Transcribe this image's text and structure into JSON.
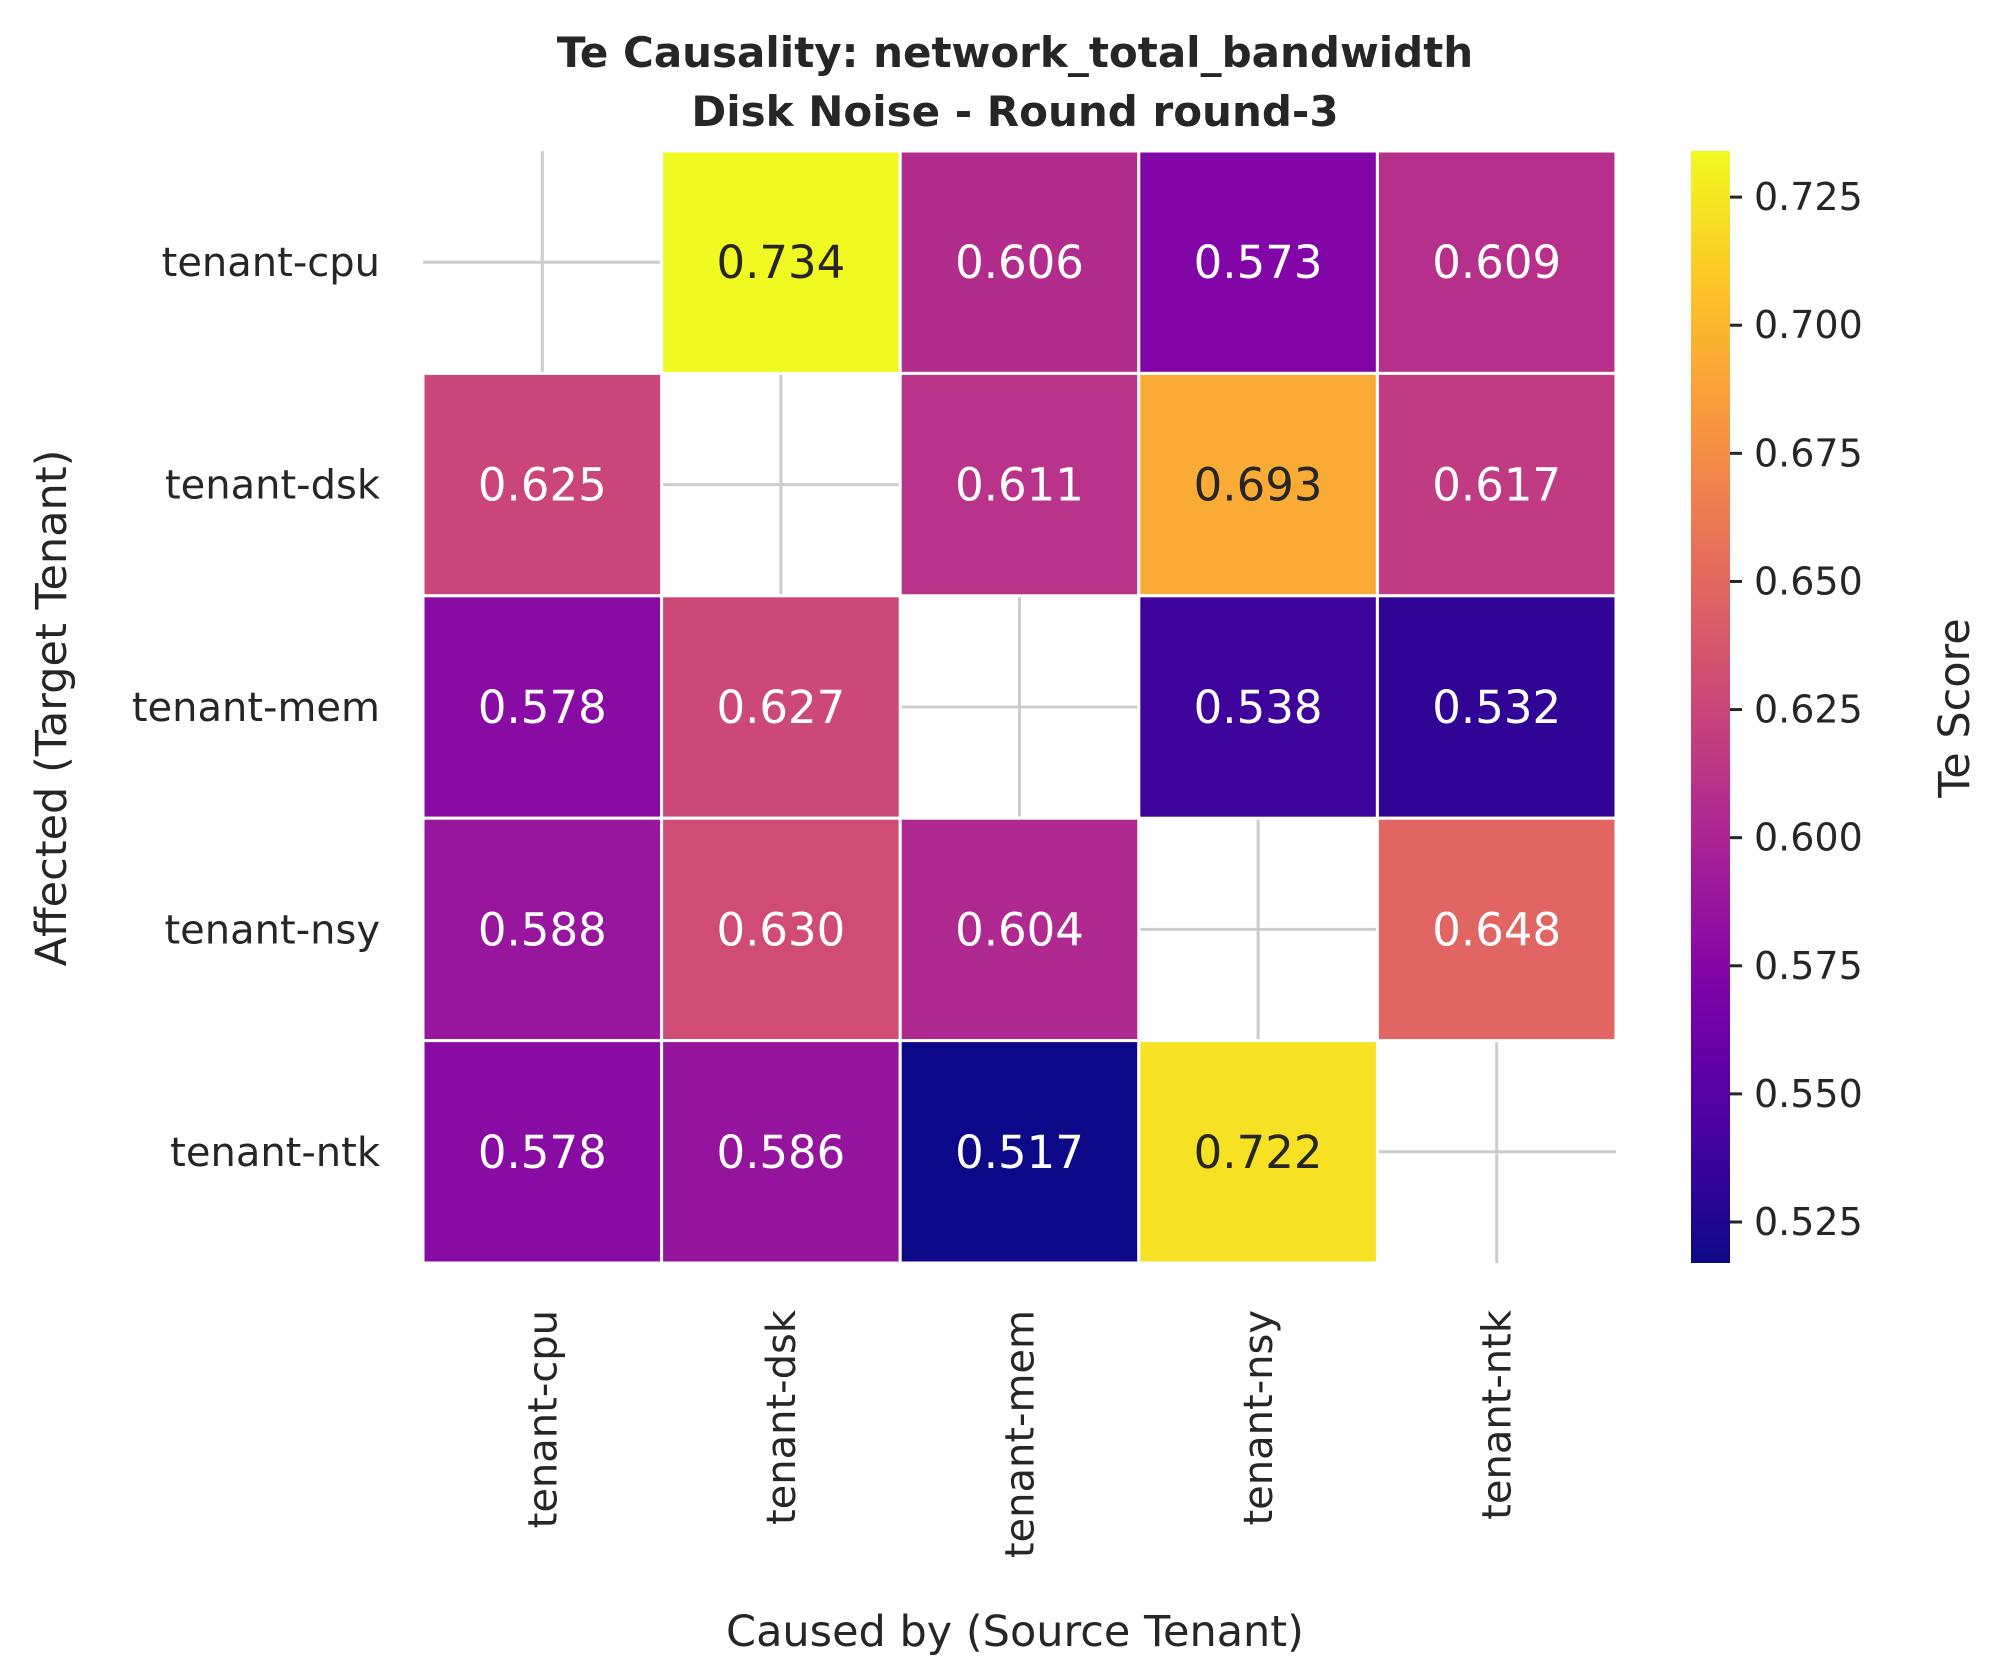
{
  "chart_data": {
    "type": "heatmap",
    "title": "Te Causality: network_total_bandwidth",
    "subtitle": "Disk Noise - Round round-3",
    "xlabel": "Caused by (Source Tenant)",
    "ylabel": "Affected (Target Tenant)",
    "x_categories": [
      "tenant-cpu",
      "tenant-dsk",
      "tenant-mem",
      "tenant-nsy",
      "tenant-ntk"
    ],
    "y_categories": [
      "tenant-cpu",
      "tenant-dsk",
      "tenant-mem",
      "tenant-nsy",
      "tenant-ntk"
    ],
    "values": [
      [
        null,
        0.734,
        0.606,
        0.573,
        0.609
      ],
      [
        0.625,
        null,
        0.611,
        0.693,
        0.617
      ],
      [
        0.578,
        0.627,
        null,
        0.538,
        0.532
      ],
      [
        0.588,
        0.63,
        0.604,
        null,
        0.648
      ],
      [
        0.578,
        0.586,
        0.517,
        0.722,
        null
      ]
    ],
    "colormap": "plasma",
    "colorbar": {
      "label": "Te Score",
      "min": 0.517,
      "max": 0.734,
      "ticks": [
        0.525,
        0.55,
        0.575,
        0.6,
        0.625,
        0.65,
        0.675,
        0.7,
        0.725
      ]
    },
    "grid": true
  }
}
